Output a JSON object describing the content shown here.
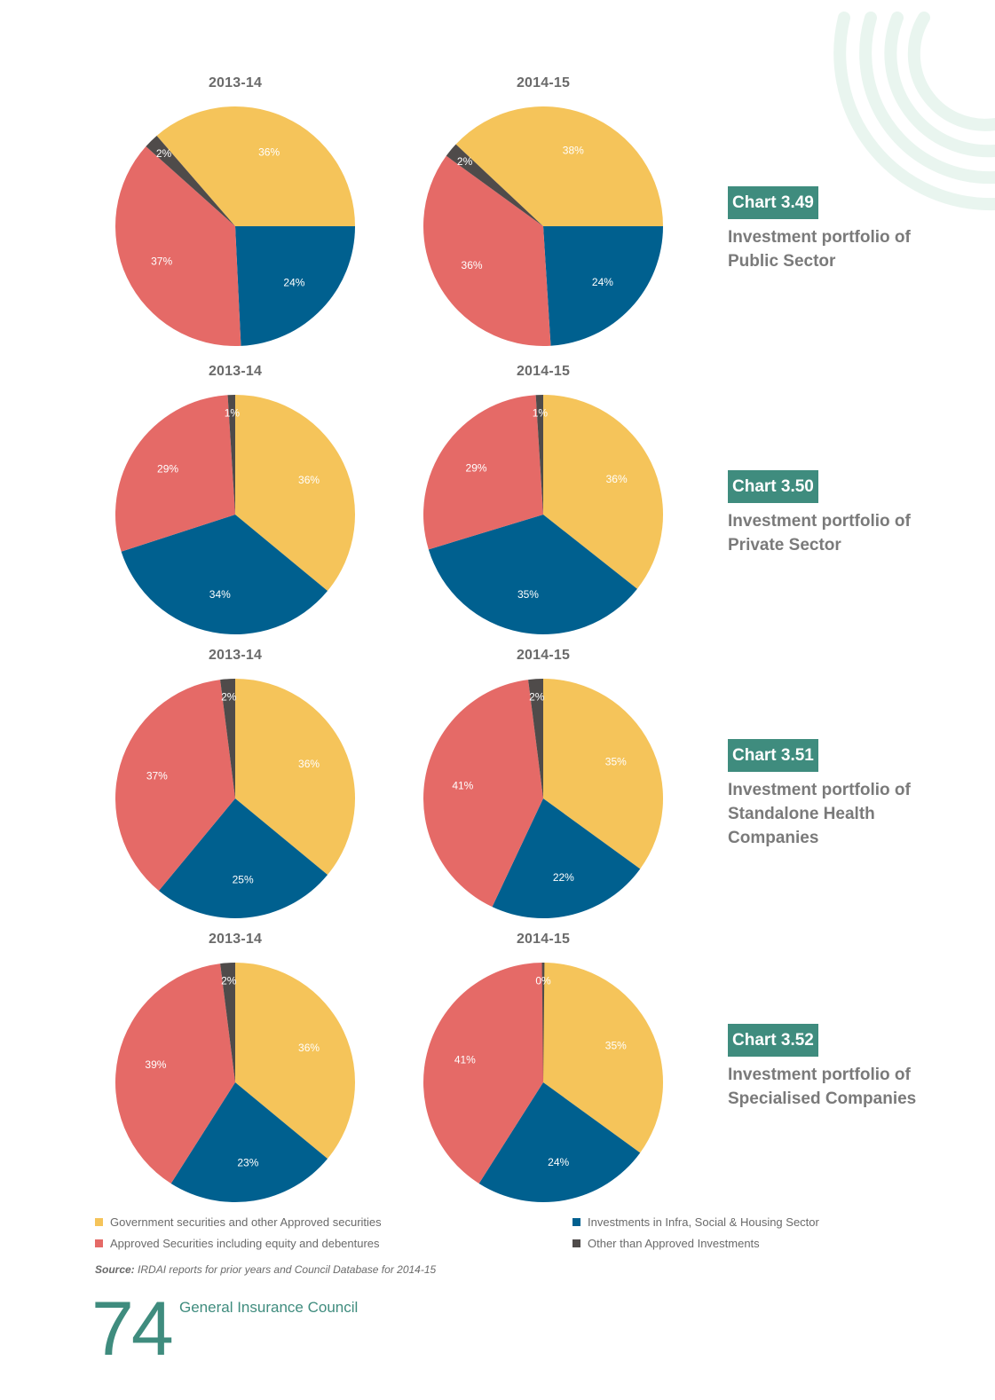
{
  "legend": [
    {
      "label": "Government securities and other Approved securities",
      "color": "#f5c45a"
    },
    {
      "label": "Approved Securities including equity and debentures",
      "color": "#e56a67"
    },
    {
      "label": "Investments in Infra, Social & Housing Sector",
      "color": "#00608f"
    },
    {
      "label": "Other than Approved Investments",
      "color": "#4f4b4a"
    }
  ],
  "source": {
    "prefix": "Source:",
    "text": " IRDAI reports for prior years and Council Database for 2014-15"
  },
  "footer": {
    "page_number": "74",
    "publisher": "General Insurance Council"
  },
  "decoration": {
    "icon": "concentric-arcs-icon",
    "color": "#e9f5ef"
  },
  "chart_data": [
    {
      "type": "pie",
      "badge": "Chart 3.49",
      "title": "Investment portfolio of Public Sector",
      "pies": [
        {
          "title": "2013-14",
          "slices": [
            {
              "category": "Government securities and other Approved securities",
              "value": 36,
              "label": "36%"
            },
            {
              "category": "Investments in Infra, Social & Housing Sector",
              "value": 24,
              "label": "24%"
            },
            {
              "category": "Approved Securities including equity and debentures",
              "value": 37,
              "label": "37%"
            },
            {
              "category": "Other than Approved Investments",
              "value": 2,
              "label": "2%"
            }
          ]
        },
        {
          "title": "2014-15",
          "slices": [
            {
              "category": "Government securities and other Approved securities",
              "value": 38,
              "label": "38%"
            },
            {
              "category": "Investments in Infra, Social & Housing Sector",
              "value": 24,
              "label": "24%"
            },
            {
              "category": "Approved Securities including equity and debentures",
              "value": 36,
              "label": "36%"
            },
            {
              "category": "Other than Approved Investments",
              "value": 2,
              "label": "2%"
            }
          ]
        }
      ]
    },
    {
      "type": "pie",
      "badge": "Chart 3.50",
      "title": "Investment portfolio of Private Sector",
      "pies": [
        {
          "title": "2013-14",
          "slices": [
            {
              "category": "Government securities and other Approved securities",
              "value": 36,
              "label": "36%"
            },
            {
              "category": "Investments in Infra, Social & Housing Sector",
              "value": 34,
              "label": "34%"
            },
            {
              "category": "Approved Securities including equity and debentures",
              "value": 29,
              "label": "29%"
            },
            {
              "category": "Other than Approved Investments",
              "value": 1,
              "label": "1%"
            }
          ]
        },
        {
          "title": "2014-15",
          "slices": [
            {
              "category": "Government securities and other Approved securities",
              "value": 36,
              "label": "36%"
            },
            {
              "category": "Investments in Infra, Social & Housing Sector",
              "value": 35,
              "label": "35%"
            },
            {
              "category": "Approved Securities including equity and debentures",
              "value": 29,
              "label": "29%"
            },
            {
              "category": "Other than Approved Investments",
              "value": 1,
              "label": "1%"
            }
          ]
        }
      ]
    },
    {
      "type": "pie",
      "badge": "Chart 3.51",
      "title": "Investment portfolio of Standalone Health Companies",
      "pies": [
        {
          "title": "2013-14",
          "slices": [
            {
              "category": "Government securities and other Approved securities",
              "value": 36,
              "label": "36%"
            },
            {
              "category": "Investments in Infra, Social & Housing Sector",
              "value": 25,
              "label": "25%"
            },
            {
              "category": "Approved Securities including equity and debentures",
              "value": 37,
              "label": "37%"
            },
            {
              "category": "Other than Approved Investments",
              "value": 2,
              "label": "2%"
            }
          ]
        },
        {
          "title": "2014-15",
          "slices": [
            {
              "category": "Government securities and other Approved securities",
              "value": 35,
              "label": "35%"
            },
            {
              "category": "Investments in Infra, Social & Housing Sector",
              "value": 22,
              "label": "22%"
            },
            {
              "category": "Approved Securities including equity and debentures",
              "value": 41,
              "label": "41%"
            },
            {
              "category": "Other than Approved Investments",
              "value": 2,
              "label": "2%"
            }
          ]
        }
      ]
    },
    {
      "type": "pie",
      "badge": "Chart 3.52",
      "title": "Investment portfolio of Specialised Companies",
      "pies": [
        {
          "title": "2013-14",
          "slices": [
            {
              "category": "Government securities and other Approved securities",
              "value": 36,
              "label": "36%"
            },
            {
              "category": "Investments in Infra, Social & Housing Sector",
              "value": 23,
              "label": "23%"
            },
            {
              "category": "Approved Securities including equity and debentures",
              "value": 39,
              "label": "39%"
            },
            {
              "category": "Other than Approved Investments",
              "value": 2,
              "label": "2%"
            }
          ]
        },
        {
          "title": "2014-15",
          "slices": [
            {
              "category": "Government securities and other Approved securities",
              "value": 35,
              "label": "35%"
            },
            {
              "category": "Investments in Infra, Social & Housing Sector",
              "value": 24,
              "label": "24%"
            },
            {
              "category": "Approved Securities including equity and debentures",
              "value": 41,
              "label": "41%"
            },
            {
              "category": "Other than Approved Investments",
              "value": 0,
              "label": "0%"
            }
          ]
        }
      ]
    }
  ]
}
